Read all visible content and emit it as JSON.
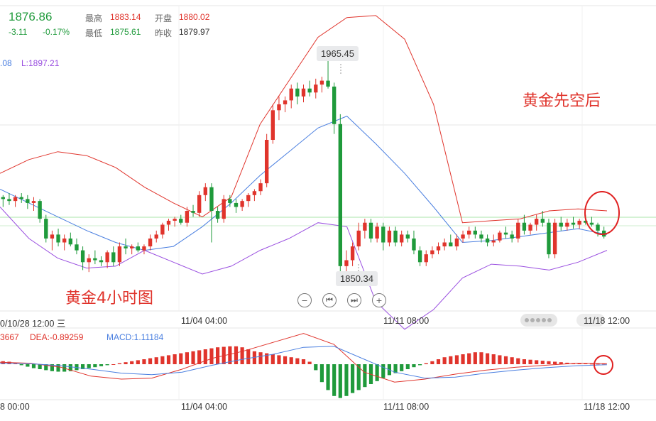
{
  "quote": {
    "price": "1876.86",
    "change": "-3.11",
    "change_pct": "-0.17%",
    "high_label": "最高",
    "high": "1883.14",
    "open_label": "开盘",
    "open": "1880.02",
    "low_label": "最低",
    "low": "1875.61",
    "prev_label": "昨收",
    "prev": "1879.97"
  },
  "boll": {
    "fragment": ".08",
    "lower": "L:1897.21"
  },
  "macd_legend": {
    "dif": "3667",
    "dea": "DEA:-0.89259",
    "macd": "MACD:1.11184"
  },
  "annotations": {
    "right": "黄金先空后",
    "left": "黄金4小时图"
  },
  "price_tags": {
    "high": "1965.45",
    "low": "1850.34"
  },
  "controls": [
    "zoom-out",
    "step-back",
    "step-forward",
    "zoom-in"
  ],
  "x_axis_main": [
    "0/10/28 12:00 三",
    "11/04 04:00",
    "11/11 08:00",
    "11/18 12:00"
  ],
  "x_axis_macd": [
    "8 00:00",
    "11/04 04:00",
    "11/11 08:00",
    "11/18 12:00"
  ],
  "colors": {
    "up": "#e0342c",
    "down": "#1f9a3b",
    "upper": "#e0342c",
    "mid": "#4a7fe0",
    "lower": "#9a4fe0",
    "grid": "#e5e5e5"
  },
  "chart_data": {
    "type": "candlestick",
    "y_range": [
      1836,
      1990
    ],
    "candles": [
      [
        1893,
        1894,
        1888,
        1892
      ],
      [
        1892,
        1895,
        1889,
        1891
      ],
      [
        1891,
        1894,
        1888,
        1893
      ],
      [
        1893,
        1895,
        1890,
        1892
      ],
      [
        1892,
        1894,
        1887,
        1890
      ],
      [
        1890,
        1893,
        1886,
        1891
      ],
      [
        1891,
        1892,
        1880,
        1882
      ],
      [
        1882,
        1884,
        1870,
        1872
      ],
      [
        1872,
        1876,
        1866,
        1874
      ],
      [
        1874,
        1877,
        1868,
        1870
      ],
      [
        1870,
        1874,
        1866,
        1872
      ],
      [
        1872,
        1875,
        1868,
        1869
      ],
      [
        1869,
        1872,
        1864,
        1866
      ],
      [
        1866,
        1868,
        1856,
        1860
      ],
      [
        1860,
        1864,
        1855,
        1862
      ],
      [
        1862,
        1866,
        1859,
        1861
      ],
      [
        1861,
        1863,
        1858,
        1860
      ],
      [
        1860,
        1866,
        1857,
        1865
      ],
      [
        1865,
        1868,
        1858,
        1860
      ],
      [
        1860,
        1870,
        1858,
        1868
      ],
      [
        1868,
        1872,
        1864,
        1867
      ],
      [
        1867,
        1869,
        1864,
        1868
      ],
      [
        1868,
        1870,
        1865,
        1866
      ],
      [
        1866,
        1869,
        1864,
        1868
      ],
      [
        1868,
        1874,
        1866,
        1872
      ],
      [
        1872,
        1876,
        1870,
        1874
      ],
      [
        1874,
        1880,
        1872,
        1879
      ],
      [
        1879,
        1882,
        1876,
        1881
      ],
      [
        1881,
        1883,
        1878,
        1882
      ],
      [
        1882,
        1884,
        1879,
        1880
      ],
      [
        1880,
        1888,
        1878,
        1886
      ],
      [
        1886,
        1889,
        1883,
        1885
      ],
      [
        1885,
        1896,
        1883,
        1894
      ],
      [
        1894,
        1900,
        1891,
        1898
      ],
      [
        1898,
        1900,
        1870,
        1886
      ],
      [
        1886,
        1888,
        1880,
        1882
      ],
      [
        1882,
        1894,
        1880,
        1892
      ],
      [
        1892,
        1894,
        1888,
        1890
      ],
      [
        1890,
        1892,
        1885,
        1888
      ],
      [
        1888,
        1892,
        1886,
        1891
      ],
      [
        1891,
        1895,
        1888,
        1894
      ],
      [
        1894,
        1897,
        1891,
        1896
      ],
      [
        1896,
        1902,
        1894,
        1900
      ],
      [
        1900,
        1925,
        1898,
        1922
      ],
      [
        1922,
        1940,
        1920,
        1937
      ],
      [
        1937,
        1944,
        1932,
        1940
      ],
      [
        1940,
        1944,
        1936,
        1942
      ],
      [
        1942,
        1950,
        1938,
        1948
      ],
      [
        1948,
        1951,
        1940,
        1944
      ],
      [
        1944,
        1950,
        1941,
        1948
      ],
      [
        1948,
        1952,
        1944,
        1946
      ],
      [
        1946,
        1953,
        1943,
        1950
      ],
      [
        1950,
        1954,
        1946,
        1952
      ],
      [
        1952,
        1965,
        1948,
        1949
      ],
      [
        1949,
        1951,
        1925,
        1930
      ],
      [
        1930,
        1935,
        1850,
        1858
      ],
      [
        1858,
        1866,
        1852,
        1861
      ],
      [
        1861,
        1870,
        1858,
        1868
      ],
      [
        1868,
        1880,
        1866,
        1876
      ],
      [
        1876,
        1882,
        1872,
        1880
      ],
      [
        1880,
        1882,
        1870,
        1872
      ],
      [
        1872,
        1880,
        1870,
        1878
      ],
      [
        1878,
        1880,
        1866,
        1870
      ],
      [
        1870,
        1878,
        1868,
        1876
      ],
      [
        1876,
        1878,
        1868,
        1870
      ],
      [
        1870,
        1876,
        1868,
        1874
      ],
      [
        1874,
        1876,
        1870,
        1872
      ],
      [
        1872,
        1876,
        1864,
        1866
      ],
      [
        1866,
        1868,
        1858,
        1860
      ],
      [
        1860,
        1866,
        1858,
        1864
      ],
      [
        1864,
        1868,
        1862,
        1866
      ],
      [
        1866,
        1870,
        1864,
        1868
      ],
      [
        1868,
        1872,
        1866,
        1870
      ],
      [
        1870,
        1874,
        1868,
        1868
      ],
      [
        1868,
        1874,
        1866,
        1872
      ],
      [
        1872,
        1876,
        1870,
        1874
      ],
      [
        1874,
        1878,
        1872,
        1876
      ],
      [
        1876,
        1878,
        1872,
        1874
      ],
      [
        1874,
        1876,
        1870,
        1872
      ],
      [
        1872,
        1874,
        1868,
        1870
      ],
      [
        1870,
        1874,
        1868,
        1871
      ],
      [
        1871,
        1876,
        1870,
        1875
      ],
      [
        1875,
        1878,
        1872,
        1874
      ],
      [
        1874,
        1876,
        1870,
        1872
      ],
      [
        1872,
        1882,
        1870,
        1880
      ],
      [
        1880,
        1884,
        1874,
        1876
      ],
      [
        1876,
        1880,
        1874,
        1879
      ],
      [
        1879,
        1884,
        1876,
        1882
      ],
      [
        1882,
        1886,
        1878,
        1880
      ],
      [
        1880,
        1882,
        1862,
        1864
      ],
      [
        1864,
        1882,
        1862,
        1880
      ],
      [
        1880,
        1883,
        1876,
        1878
      ],
      [
        1878,
        1882,
        1876,
        1880
      ],
      [
        1880,
        1883,
        1877,
        1879
      ],
      [
        1879,
        1882,
        1877,
        1881
      ],
      [
        1881,
        1884,
        1879,
        1880
      ],
      [
        1880,
        1883,
        1878,
        1879
      ],
      [
        1879,
        1880,
        1873,
        1876
      ],
      [
        1876,
        1878,
        1872,
        1873
      ]
    ],
    "boll_upper": [
      1905,
      1912,
      1916,
      1914,
      1908,
      1898,
      1890,
      1883,
      1893,
      1930,
      1952,
      1974,
      1984,
      1985,
      1973,
      1940,
      1880,
      1881,
      1882,
      1886,
      1887,
      1886
    ],
    "boll_mid": [
      1897,
      1890,
      1883,
      1876,
      1870,
      1866,
      1868,
      1878,
      1890,
      1904,
      1916,
      1928,
      1934,
      1920,
      1905,
      1888,
      1870,
      1871,
      1873,
      1875,
      1877,
      1874
    ],
    "boll_lower": [
      1888,
      1872,
      1862,
      1857,
      1858,
      1866,
      1860,
      1854,
      1858,
      1866,
      1872,
      1880,
      1878,
      1840,
      1826,
      1836,
      1852,
      1859,
      1858,
      1856,
      1860,
      1866
    ],
    "macd_hist": [
      0.6,
      0.5,
      0.2,
      -0.2,
      -0.5,
      -0.8,
      -1.0,
      -1.2,
      -1.4,
      -1.5,
      -1.5,
      -1.4,
      -1.2,
      -1.0,
      -0.8,
      -0.6,
      -0.4,
      -0.2,
      0.0,
      0.2,
      0.4,
      0.6,
      0.8,
      1.0,
      1.2,
      1.4,
      1.6,
      1.8,
      2.0,
      2.2,
      2.4,
      2.6,
      2.8,
      3.0,
      3.2,
      3.4,
      3.5,
      3.6,
      3.6,
      3.4,
      3.0,
      2.6,
      2.4,
      2.2,
      2.0,
      1.8,
      1.6,
      1.4,
      1.2,
      1.0,
      0.5,
      -1.2,
      -3.6,
      -5.2,
      -6.4,
      -6.8,
      -6.4,
      -5.8,
      -5.2,
      -4.6,
      -4.0,
      -3.4,
      -2.8,
      -2.2,
      -1.8,
      -1.4,
      -1.0,
      -0.6,
      -0.2,
      0.2,
      0.6,
      1.0,
      1.4,
      1.6,
      1.8,
      2.0,
      2.2,
      2.4,
      2.4,
      2.2,
      2.0,
      1.8,
      1.6,
      1.4,
      1.2,
      1.0,
      0.9,
      0.8,
      0.7,
      0.6,
      0.5,
      0.4,
      0.3,
      0.2,
      0.2,
      0.2,
      0.1,
      0.1,
      0.1
    ],
    "dif": [
      0.4,
      0.2,
      -0.6,
      -2.4,
      -3.0,
      -2.8,
      -1.0,
      1.2,
      2.6,
      4.4,
      6.2,
      4.0,
      -1.6,
      -3.6,
      -3.0,
      -2.0,
      -1.2,
      -0.6,
      -0.2,
      0.2,
      0.1
    ],
    "dea": [
      0.2,
      0.1,
      -0.3,
      -1.0,
      -1.8,
      -2.1,
      -1.6,
      -0.2,
      1.0,
      2.0,
      3.4,
      3.6,
      1.0,
      -1.6,
      -2.8,
      -2.6,
      -1.8,
      -1.2,
      -0.7,
      -0.3,
      -0.1
    ]
  }
}
